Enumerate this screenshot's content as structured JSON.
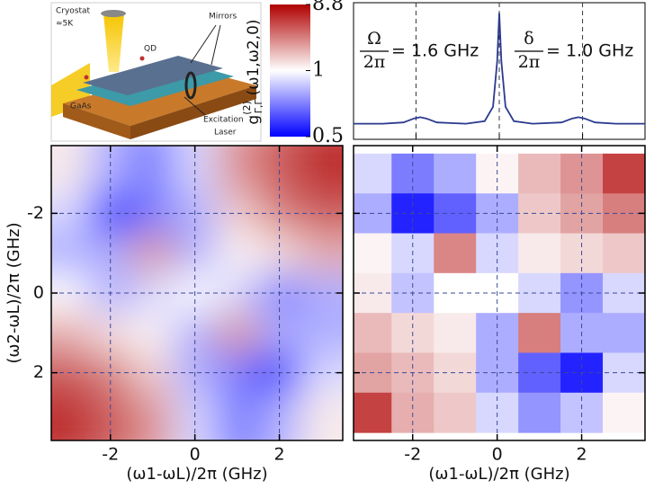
{
  "inset": {
    "labels": [
      "Cryostat",
      "≈5K",
      "QD",
      "Mirrors",
      "GaAs",
      "Excitation",
      "Laser"
    ]
  },
  "colorbar": {
    "label": {
      "symbol": "g",
      "sup": "(2)",
      "sub": "Γ,Γ",
      "args": "(ω1,ω2,0)"
    },
    "ticks": [
      8.8,
      1,
      0.5
    ],
    "colors": [
      "#0000ff",
      "#ffffff",
      "#b00000"
    ]
  },
  "chart_data": [
    {
      "type": "line",
      "color": "#2b3a8f",
      "x": [
        -3.5,
        -2.8,
        -2.3,
        -2.05,
        -1.9,
        -1.75,
        -1.5,
        -0.8,
        -0.35,
        -0.15,
        -0.05,
        0,
        0.05,
        0.15,
        0.35,
        0.8,
        1.5,
        1.75,
        1.9,
        2.05,
        2.3,
        2.8,
        3.5
      ],
      "values": [
        0.12,
        0.12,
        0.13,
        0.16,
        0.17,
        0.16,
        0.13,
        0.12,
        0.14,
        0.25,
        0.6,
        0.97,
        0.6,
        0.25,
        0.14,
        0.12,
        0.13,
        0.16,
        0.17,
        0.16,
        0.13,
        0.12,
        0.12
      ],
      "xlim": [
        -3.5,
        3.5
      ],
      "ylim": [
        0,
        1.05
      ],
      "xticks": [
        -2,
        0,
        2
      ],
      "annotations": [
        {
          "numerator": "Ω",
          "denominator": "2π",
          "text": "= 1.6 GHz"
        },
        {
          "numerator": "δ",
          "denominator": "2π",
          "text": "= 1.0 GHz"
        }
      ]
    },
    {
      "type": "heatmap",
      "interpolation": "smooth",
      "x": [
        -3,
        -2,
        -1,
        0,
        1,
        2,
        3
      ],
      "y": [
        -3,
        -2,
        -1,
        0,
        1,
        2,
        3
      ],
      "z": [
        [
          1.2,
          0.8,
          0.7,
          0.9,
          2.5,
          4,
          6
        ],
        [
          0.9,
          0.5,
          0.7,
          0.8,
          1.5,
          3,
          4
        ],
        [
          0.8,
          0.8,
          2.5,
          0.8,
          1.1,
          1.3,
          2
        ],
        [
          1,
          0.8,
          0.9,
          1,
          0.9,
          0.7,
          0.8
        ],
        [
          2,
          1.3,
          1.1,
          0.8,
          2.5,
          0.8,
          0.8
        ],
        [
          4,
          3,
          1.5,
          0.8,
          0.7,
          0.5,
          0.9
        ],
        [
          6,
          4,
          2.5,
          0.9,
          0.7,
          0.8,
          1.2
        ]
      ],
      "xlim": [
        -3.4,
        3.5
      ],
      "ylim": [
        -3.7,
        3.7
      ],
      "xticks": [
        -2,
        0,
        2
      ],
      "yticks": [
        -2,
        0,
        2
      ],
      "x_label": "(ω1-ωL)/2π (GHz)",
      "y_label": "(ω2-ωL)/2π (GHz)"
    },
    {
      "type": "heatmap",
      "interpolation": "nearest",
      "x": [
        -3,
        -2,
        -1,
        0,
        1,
        2,
        3
      ],
      "y": [
        -3,
        -2,
        -1,
        0,
        1,
        2,
        3
      ],
      "z": [
        [
          0.9,
          0.7,
          0.8,
          1.1,
          1.8,
          2.5,
          5
        ],
        [
          0.8,
          0.55,
          0.65,
          0.8,
          1.6,
          2.2,
          3
        ],
        [
          1.1,
          0.9,
          2.8,
          0.9,
          1.2,
          1.4,
          1.6
        ],
        [
          1.2,
          0.85,
          1,
          1,
          0.9,
          0.75,
          0.9
        ],
        [
          1.8,
          1.4,
          1.2,
          0.8,
          3,
          0.8,
          0.8
        ],
        [
          2.2,
          1.8,
          1.4,
          0.8,
          0.65,
          0.55,
          0.9
        ],
        [
          5,
          2,
          1.6,
          0.9,
          0.75,
          0.85,
          1.1
        ]
      ],
      "xlim": [
        -3.4,
        3.5
      ],
      "ylim": [
        -3.7,
        3.7
      ],
      "xticks": [
        -2,
        0,
        2
      ],
      "x_label": "(ω1-ωL)/2π (GHz)"
    }
  ]
}
